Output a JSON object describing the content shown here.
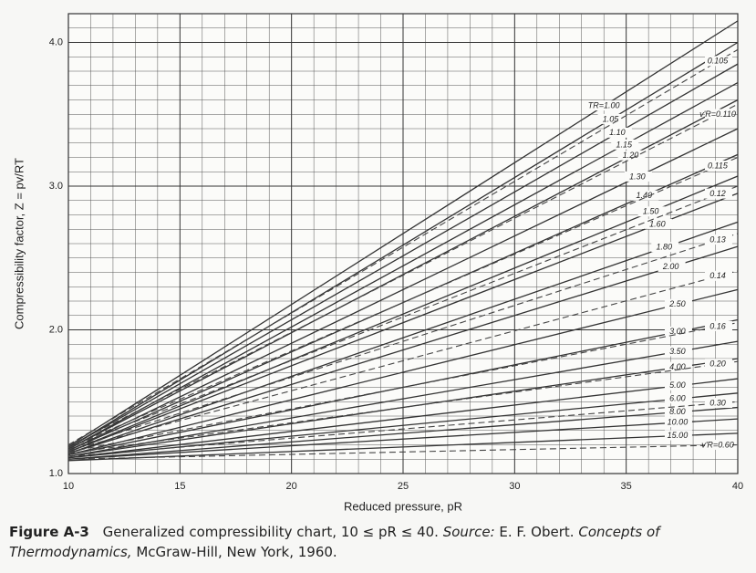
{
  "chart_data": {
    "type": "line",
    "y_label": "Compressibility factor, Z = pv/RT",
    "x_label": "Reduced pressure, pR",
    "xlim": [
      10,
      40
    ],
    "ylim": [
      1.0,
      4.2
    ],
    "xticks": [
      10,
      15,
      20,
      25,
      30,
      35,
      40
    ],
    "yticks": [
      {
        "value": 1,
        "label": "1.0"
      },
      {
        "value": 2,
        "label": "2.0"
      },
      {
        "value": 3,
        "label": "3.0"
      },
      {
        "value": 4,
        "label": "4.0"
      }
    ],
    "grid": true,
    "minor_grid": true,
    "x": [
      10,
      40
    ],
    "series": [
      {
        "name": "TR=1.00",
        "color": "#333333",
        "values": [
          1.19,
          4.15
        ]
      },
      {
        "name": "1.05",
        "color": "#333333",
        "values": [
          1.18,
          4.0
        ]
      },
      {
        "name": "1.10",
        "color": "#333333",
        "values": [
          1.18,
          3.85
        ]
      },
      {
        "name": "1.15",
        "color": "#333333",
        "values": [
          1.17,
          3.72
        ]
      },
      {
        "name": "1.20",
        "color": "#333333",
        "values": [
          1.17,
          3.6
        ]
      },
      {
        "name": "1.30",
        "color": "#333333",
        "values": [
          1.16,
          3.4
        ]
      },
      {
        "name": "1.40",
        "color": "#333333",
        "values": [
          1.16,
          3.22
        ]
      },
      {
        "name": "1.50",
        "color": "#333333",
        "values": [
          1.15,
          3.07
        ]
      },
      {
        "name": "1.60",
        "color": "#333333",
        "values": [
          1.15,
          2.95
        ]
      },
      {
        "name": "1.80",
        "color": "#333333",
        "values": [
          1.14,
          2.75
        ]
      },
      {
        "name": "2.00",
        "color": "#333333",
        "values": [
          1.14,
          2.58
        ]
      },
      {
        "name": "2.50",
        "color": "#333333",
        "values": [
          1.13,
          2.28
        ]
      },
      {
        "name": "3.00",
        "color": "#333333",
        "values": [
          1.13,
          2.07
        ]
      },
      {
        "name": "3.50",
        "color": "#333333",
        "values": [
          1.12,
          1.92
        ]
      },
      {
        "name": "4.00",
        "color": "#333333",
        "values": [
          1.12,
          1.8
        ]
      },
      {
        "name": "5.00",
        "color": "#333333",
        "values": [
          1.11,
          1.66
        ]
      },
      {
        "name": "6.00",
        "color": "#333333",
        "values": [
          1.11,
          1.56
        ]
      },
      {
        "name": "8.00",
        "color": "#333333",
        "values": [
          1.1,
          1.46
        ]
      },
      {
        "name": "10.00",
        "color": "#333333",
        "values": [
          1.1,
          1.38
        ]
      },
      {
        "name": "15.00",
        "color": "#333333",
        "values": [
          1.09,
          1.28
        ]
      }
    ],
    "dashed_series": [
      {
        "name": "0.105",
        "color": "#444444",
        "values": [
          1.2,
          3.95
        ]
      },
      {
        "name": "v'R=0.110",
        "color": "#444444",
        "values": [
          1.19,
          3.57
        ]
      },
      {
        "name": "0.115",
        "color": "#444444",
        "values": [
          1.18,
          3.2
        ]
      },
      {
        "name": "0.12",
        "color": "#444444",
        "values": [
          1.18,
          3.0
        ]
      },
      {
        "name": "0.13",
        "color": "#444444",
        "values": [
          1.17,
          2.67
        ]
      },
      {
        "name": "0.14",
        "color": "#444444",
        "values": [
          1.16,
          2.41
        ]
      },
      {
        "name": "0.16",
        "color": "#444444",
        "values": [
          1.15,
          2.05
        ]
      },
      {
        "name": "0.20",
        "color": "#444444",
        "values": [
          1.14,
          1.78
        ]
      },
      {
        "name": "0.30",
        "color": "#444444",
        "values": [
          1.12,
          1.5
        ]
      },
      {
        "name": "v'R=0.60",
        "color": "#444444",
        "values": [
          1.1,
          1.2
        ]
      }
    ]
  },
  "caption": {
    "figure": "Figure A-3",
    "text": "Generalized compressibility chart, 10 ≤ pR ≤ 40.",
    "source_label": "Source:",
    "source": "E. F. Obert.",
    "book": "Concepts of Thermodynamics,",
    "publisher": "McGraw-Hill, New York, 1960."
  }
}
